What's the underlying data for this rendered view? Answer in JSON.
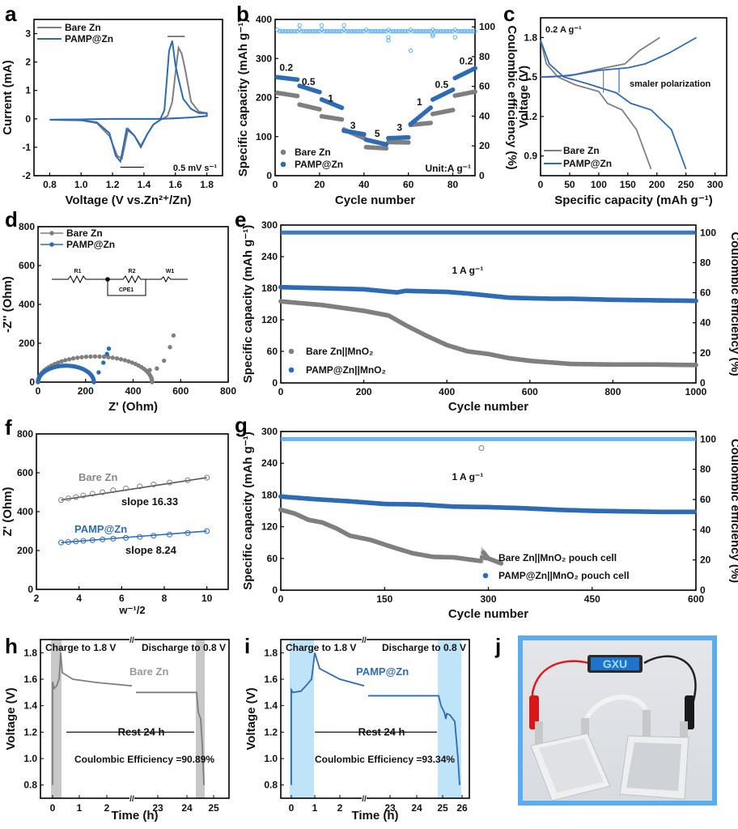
{
  "panels": {
    "a": "a",
    "b": "b",
    "c": "c",
    "d": "d",
    "e": "e",
    "f": "f",
    "g": "g",
    "h": "h",
    "i": "i",
    "j": "j"
  },
  "colors": {
    "gray": "#7f7f7f",
    "blue": "#2e6bb5",
    "blue_light": "#5aaef0",
    "shade_gray": "#c8c8c8",
    "shade_blue": "#bfe3f8"
  },
  "chart_data": [
    {
      "id": "a",
      "type": "line",
      "xlabel": "Voltage (V vs.Zn2+/Zn)",
      "ylabel": "Current (mA)",
      "xlim": [
        0.7,
        1.9
      ],
      "ylim": [
        -2,
        3.5
      ],
      "xticks": [
        "0.8",
        "1.0",
        "1.2",
        "1.4",
        "1.6",
        "1.8"
      ],
      "yticks": [
        "-2",
        "-1",
        "0",
        "1",
        "2",
        "3"
      ],
      "annotation": "0.5 mV s-1",
      "legend": [
        "Bare Zn",
        "PAMP@Zn"
      ],
      "legend_position": "top-left",
      "series": [
        {
          "name": "Bare Zn",
          "x": [
            0.8,
            1.0,
            1.1,
            1.18,
            1.23,
            1.26,
            1.3,
            1.34,
            1.38,
            1.42,
            1.46,
            1.5,
            1.55,
            1.58,
            1.6,
            1.62,
            1.64,
            1.66,
            1.7,
            1.75,
            1.8,
            1.8,
            1.7,
            1.6,
            1.5,
            1.4,
            1.2,
            1.0,
            0.8
          ],
          "y": [
            -0.03,
            -0.05,
            -0.15,
            -0.6,
            -1.3,
            -1.4,
            -0.35,
            -0.6,
            -0.95,
            -0.55,
            -0.2,
            -0.05,
            0.1,
            0.6,
            1.6,
            2.5,
            2.3,
            1.8,
            0.6,
            0.25,
            0.2,
            0.1,
            0.05,
            0.02,
            0.0,
            0.0,
            0.0,
            -0.02,
            -0.03
          ]
        },
        {
          "name": "PAMP@Zn",
          "x": [
            0.8,
            1.0,
            1.1,
            1.18,
            1.22,
            1.25,
            1.29,
            1.34,
            1.38,
            1.42,
            1.46,
            1.5,
            1.53,
            1.56,
            1.58,
            1.6,
            1.62,
            1.65,
            1.7,
            1.75,
            1.8,
            1.8,
            1.7,
            1.6,
            1.5,
            1.4,
            1.2,
            1.0,
            0.8
          ],
          "y": [
            -0.03,
            -0.05,
            -0.12,
            -0.5,
            -1.3,
            -1.5,
            -0.35,
            -0.6,
            -1.0,
            -0.55,
            -0.2,
            -0.05,
            0.3,
            2.4,
            2.75,
            1.9,
            1.4,
            0.7,
            0.35,
            0.2,
            0.2,
            0.1,
            0.05,
            0.02,
            0.0,
            0.0,
            0.0,
            -0.02,
            -0.03
          ]
        }
      ]
    },
    {
      "id": "b",
      "type": "scatter",
      "xlabel": "Cycle number",
      "ylabel": "Specific capacity (mAh g-1)",
      "ylabel_right": "Coulombic efficiency (%)",
      "xlim": [
        0,
        90
      ],
      "ylim": [
        0,
        400
      ],
      "ylim_right": [
        0,
        105
      ],
      "xticks": [
        "0",
        "20",
        "40",
        "60",
        "80"
      ],
      "yticks": [
        "0",
        "100",
        "200",
        "300",
        "400"
      ],
      "yticks_right": [
        "0",
        "20",
        "40",
        "60",
        "80",
        "100"
      ],
      "rate_labels": [
        {
          "text": "0.2",
          "x": 5,
          "y": 268
        },
        {
          "text": "0.5",
          "x": 15,
          "y": 232
        },
        {
          "text": "1",
          "x": 25,
          "y": 190
        },
        {
          "text": "3",
          "x": 35,
          "y": 120
        },
        {
          "text": "5",
          "x": 46,
          "y": 100
        },
        {
          "text": "3",
          "x": 56,
          "y": 115
        },
        {
          "text": "1",
          "x": 65,
          "y": 180
        },
        {
          "text": "0.5",
          "x": 75,
          "y": 225
        },
        {
          "text": "0.2",
          "x": 86,
          "y": 285
        }
      ],
      "unit_label": "Unit:A g-1",
      "legend": [
        "Bare Zn",
        "PAMP@Zn"
      ],
      "legend_position": "bottom-left",
      "segments": {
        "Bare Zn": [
          [
            1,
            10,
            212,
            204
          ],
          [
            11,
            20,
            182,
            170
          ],
          [
            21,
            30,
            152,
            144
          ],
          [
            31,
            40,
            118,
            96
          ],
          [
            41,
            50,
            73,
            70
          ],
          [
            51,
            60,
            86,
            85
          ],
          [
            61,
            70,
            130,
            135
          ],
          [
            71,
            80,
            158,
            168
          ],
          [
            81,
            90,
            205,
            215
          ]
        ],
        "PAMP@Zn": [
          [
            1,
            10,
            252,
            246
          ],
          [
            11,
            20,
            230,
            214
          ],
          [
            21,
            30,
            195,
            174
          ],
          [
            31,
            40,
            115,
            106
          ],
          [
            41,
            50,
            92,
            80
          ],
          [
            51,
            60,
            96,
            98
          ],
          [
            61,
            70,
            132,
            174
          ],
          [
            71,
            80,
            195,
            220
          ],
          [
            81,
            90,
            250,
            275
          ]
        ]
      },
      "ce": {
        "base": 97,
        "outliers": [
          [
            11,
            101
          ],
          [
            21,
            101
          ],
          [
            31,
            101
          ],
          [
            51,
            93
          ],
          [
            51,
            91
          ],
          [
            61,
            84
          ],
          [
            71,
            95
          ],
          [
            71,
            94
          ],
          [
            81,
            93
          ]
        ]
      }
    },
    {
      "id": "c",
      "type": "line",
      "xlabel": "Specific capacity (mAh g-1)",
      "ylabel": "Voltage (V)",
      "xlim": [
        0,
        320
      ],
      "ylim": [
        0.75,
        1.95
      ],
      "xticks": [
        "0",
        "50",
        "100",
        "150",
        "200",
        "250",
        "300"
      ],
      "yticks": [
        "0.9",
        "1.2",
        "1.5",
        "1.8"
      ],
      "annotation_top": "0.2 A g-1",
      "annotation": "smaler polarization",
      "legend": [
        "Bare Zn",
        "PAMP@Zn"
      ],
      "legend_position": "bottom-left",
      "series": [
        {
          "name": "Bare Zn charge",
          "x": [
            0,
            20,
            60,
            100,
            145,
            170,
            205
          ],
          "y": [
            1.5,
            1.5,
            1.52,
            1.56,
            1.6,
            1.7,
            1.8
          ]
        },
        {
          "name": "Bare Zn discharge",
          "x": [
            0,
            10,
            30,
            60,
            100,
            115,
            140,
            165,
            190
          ],
          "y": [
            1.78,
            1.6,
            1.5,
            1.44,
            1.39,
            1.3,
            1.25,
            1.1,
            0.8
          ]
        },
        {
          "name": "PAMP@Zn charge",
          "x": [
            0,
            50,
            100,
            150,
            180,
            220,
            268
          ],
          "y": [
            1.5,
            1.51,
            1.55,
            1.57,
            1.6,
            1.68,
            1.8
          ]
        },
        {
          "name": "PAMP@Zn discharge",
          "x": [
            0,
            15,
            40,
            80,
            130,
            155,
            190,
            225,
            250
          ],
          "y": [
            1.78,
            1.6,
            1.5,
            1.45,
            1.38,
            1.3,
            1.25,
            1.1,
            0.8
          ]
        }
      ]
    },
    {
      "id": "d",
      "type": "scatter",
      "xlabel": "Z' (Ohm)",
      "ylabel": "-Z'' (Ohm)",
      "xlim": [
        0,
        800
      ],
      "ylim": [
        0,
        800
      ],
      "xticks": [
        "0",
        "200",
        "400",
        "600",
        "800"
      ],
      "yticks": [
        "0",
        "200",
        "400",
        "600",
        "800"
      ],
      "legend": [
        "Bare Zn",
        "PAMP@Zn"
      ],
      "legend_position": "top-left",
      "circuit_labels": [
        "R1",
        "R2",
        "W1",
        "CPE1"
      ],
      "series": [
        {
          "name": "Bare Zn",
          "semicircle": [
            0,
            480
          ],
          "tail_x": [
            470,
            500,
            530,
            555,
            570
          ],
          "tail_y": [
            62,
            70,
            110,
            180,
            240
          ]
        },
        {
          "name": "PAMP@Zn",
          "semicircle": [
            0,
            235
          ],
          "tail_x": [
            235,
            255,
            275,
            290,
            298
          ],
          "tail_y": [
            0,
            50,
            100,
            145,
            172
          ]
        }
      ]
    },
    {
      "id": "e",
      "type": "scatter",
      "xlabel": "Cycle number",
      "ylabel": "Specific capacity (mAh g-1)",
      "ylabel_right": "Coulombic efficiency (%)",
      "xlim": [
        0,
        1000
      ],
      "ylim": [
        0,
        300
      ],
      "ylim_right": [
        0,
        105
      ],
      "xticks": [
        "0",
        "200",
        "400",
        "600",
        "800",
        "1000"
      ],
      "yticks": [
        "0",
        "60",
        "120",
        "180",
        "240",
        "300"
      ],
      "yticks_right": [
        "0",
        "20",
        "40",
        "60",
        "80",
        "100"
      ],
      "annotation": "1 A g-1",
      "legend": [
        "Bare Zn||MnO2",
        "PAMP@Zn||MnO2"
      ],
      "legend_position": "bottom-left",
      "series": [
        {
          "name": "Bare Zn||MnO2",
          "x": [
            0,
            100,
            200,
            260,
            300,
            350,
            400,
            450,
            500,
            550,
            600,
            700,
            800,
            900,
            1000
          ],
          "y": [
            155,
            148,
            137,
            128,
            110,
            90,
            72,
            60,
            55,
            47,
            42,
            36,
            35,
            35,
            34
          ]
        },
        {
          "name": "PAMP@Zn||MnO2",
          "x": [
            0,
            100,
            200,
            280,
            300,
            400,
            450,
            550,
            650,
            700,
            800,
            900,
            1000
          ],
          "y": [
            182,
            180,
            178,
            172,
            175,
            173,
            170,
            162,
            160,
            160,
            158,
            157,
            156
          ]
        }
      ],
      "ce_percent": 100
    },
    {
      "id": "f",
      "type": "scatter",
      "xlabel": "w-1/2",
      "ylabel": "Z' (Ohm)",
      "xlim": [
        2,
        11
      ],
      "ylim": [
        0,
        800
      ],
      "xticks": [
        "2",
        "4",
        "6",
        "8",
        "10"
      ],
      "yticks": [
        "0",
        "200",
        "400",
        "600",
        "800"
      ],
      "series": [
        {
          "name": "Bare Zn",
          "slope_label": "slope 16.33",
          "x": [
            3.16,
            3.5,
            3.85,
            4.2,
            4.63,
            5.1,
            5.6,
            6.2,
            6.85,
            7.5,
            8.25,
            9.1,
            10.0
          ],
          "y": [
            460,
            468,
            475,
            483,
            492,
            500,
            510,
            520,
            530,
            540,
            550,
            562,
            575
          ]
        },
        {
          "name": "PAMP@Zn",
          "slope_label": "slope 8.24",
          "x": [
            3.16,
            3.5,
            3.85,
            4.2,
            4.63,
            5.1,
            5.6,
            6.2,
            6.85,
            7.5,
            8.25,
            9.1,
            10.0
          ],
          "y": [
            241,
            244,
            247,
            250,
            253,
            257,
            261,
            265,
            270,
            276,
            282,
            290,
            300
          ]
        }
      ]
    },
    {
      "id": "g",
      "type": "scatter",
      "xlabel": "Cycle number",
      "ylabel": "Specific capacity (mAh g-1)",
      "ylabel_right": "Coulombic efficiency (%)",
      "xlim": [
        0,
        600
      ],
      "ylim": [
        0,
        300
      ],
      "ylim_right": [
        0,
        105
      ],
      "xticks": [
        "0",
        "150",
        "300",
        "450",
        "600"
      ],
      "yticks": [
        "0",
        "60",
        "120",
        "180",
        "240",
        "300"
      ],
      "yticks_right": [
        "0",
        "20",
        "40",
        "60",
        "80",
        "100"
      ],
      "annotation": "1 A g-1",
      "legend": [
        "Bare Zn||MnO2 pouch cell",
        "PAMP@Zn||MnO2 pouch cell"
      ],
      "legend_position": "bottom-right",
      "series": [
        {
          "name": "Bare Zn||MnO2 pouch cell",
          "x": [
            0,
            20,
            40,
            60,
            80,
            100,
            130,
            160,
            190,
            220,
            250,
            290,
            292,
            300,
            320
          ],
          "y": [
            152,
            145,
            133,
            128,
            117,
            103,
            95,
            82,
            70,
            63,
            62,
            55,
            73,
            60,
            50
          ]
        },
        {
          "name": "PAMP@Zn||MnO2 pouch cell",
          "x": [
            0,
            50,
            100,
            150,
            200,
            250,
            300,
            350,
            400,
            450,
            500,
            550,
            600
          ],
          "y": [
            177,
            172,
            168,
            163,
            162,
            158,
            157,
            155,
            152,
            150,
            149,
            148,
            148
          ]
        }
      ],
      "ce_percent": 100,
      "ce_outlier": [
        290,
        94
      ]
    },
    {
      "id": "h",
      "type": "line",
      "xlabel": "Time (h)",
      "ylabel": "Voltage (V)",
      "ylim": [
        0.7,
        1.9
      ],
      "xticks": [
        "0",
        "1",
        "2",
        "23",
        "24",
        "25"
      ],
      "yticks": [
        "0.8",
        "1.0",
        "1.2",
        "1.4",
        "1.6",
        "1.8"
      ],
      "labels": {
        "charge": "Charge to 1.8 V",
        "discharge": "Discharge to 0.8 V",
        "name": "Bare Zn",
        "rest": "Rest 24 h",
        "ce": "Coulombic Efficiency =90.89%"
      }
    },
    {
      "id": "i",
      "type": "line",
      "xlabel": "Time (h)",
      "ylabel": "Voltage (V)",
      "ylim": [
        0.7,
        1.9
      ],
      "xticks": [
        "0",
        "1",
        "2",
        "23",
        "24",
        "25",
        "26"
      ],
      "yticks": [
        "0.8",
        "1.0",
        "1.2",
        "1.4",
        "1.6",
        "1.8"
      ],
      "labels": {
        "charge": "Charge to 1.8 V",
        "discharge": "Discharge to 0.8 V",
        "name": "PAMP@Zn",
        "rest": "Rest 24 h",
        "ce": "Coulombic Efficiency =93.34%"
      }
    }
  ],
  "photo": {
    "display_text": "GXU"
  }
}
